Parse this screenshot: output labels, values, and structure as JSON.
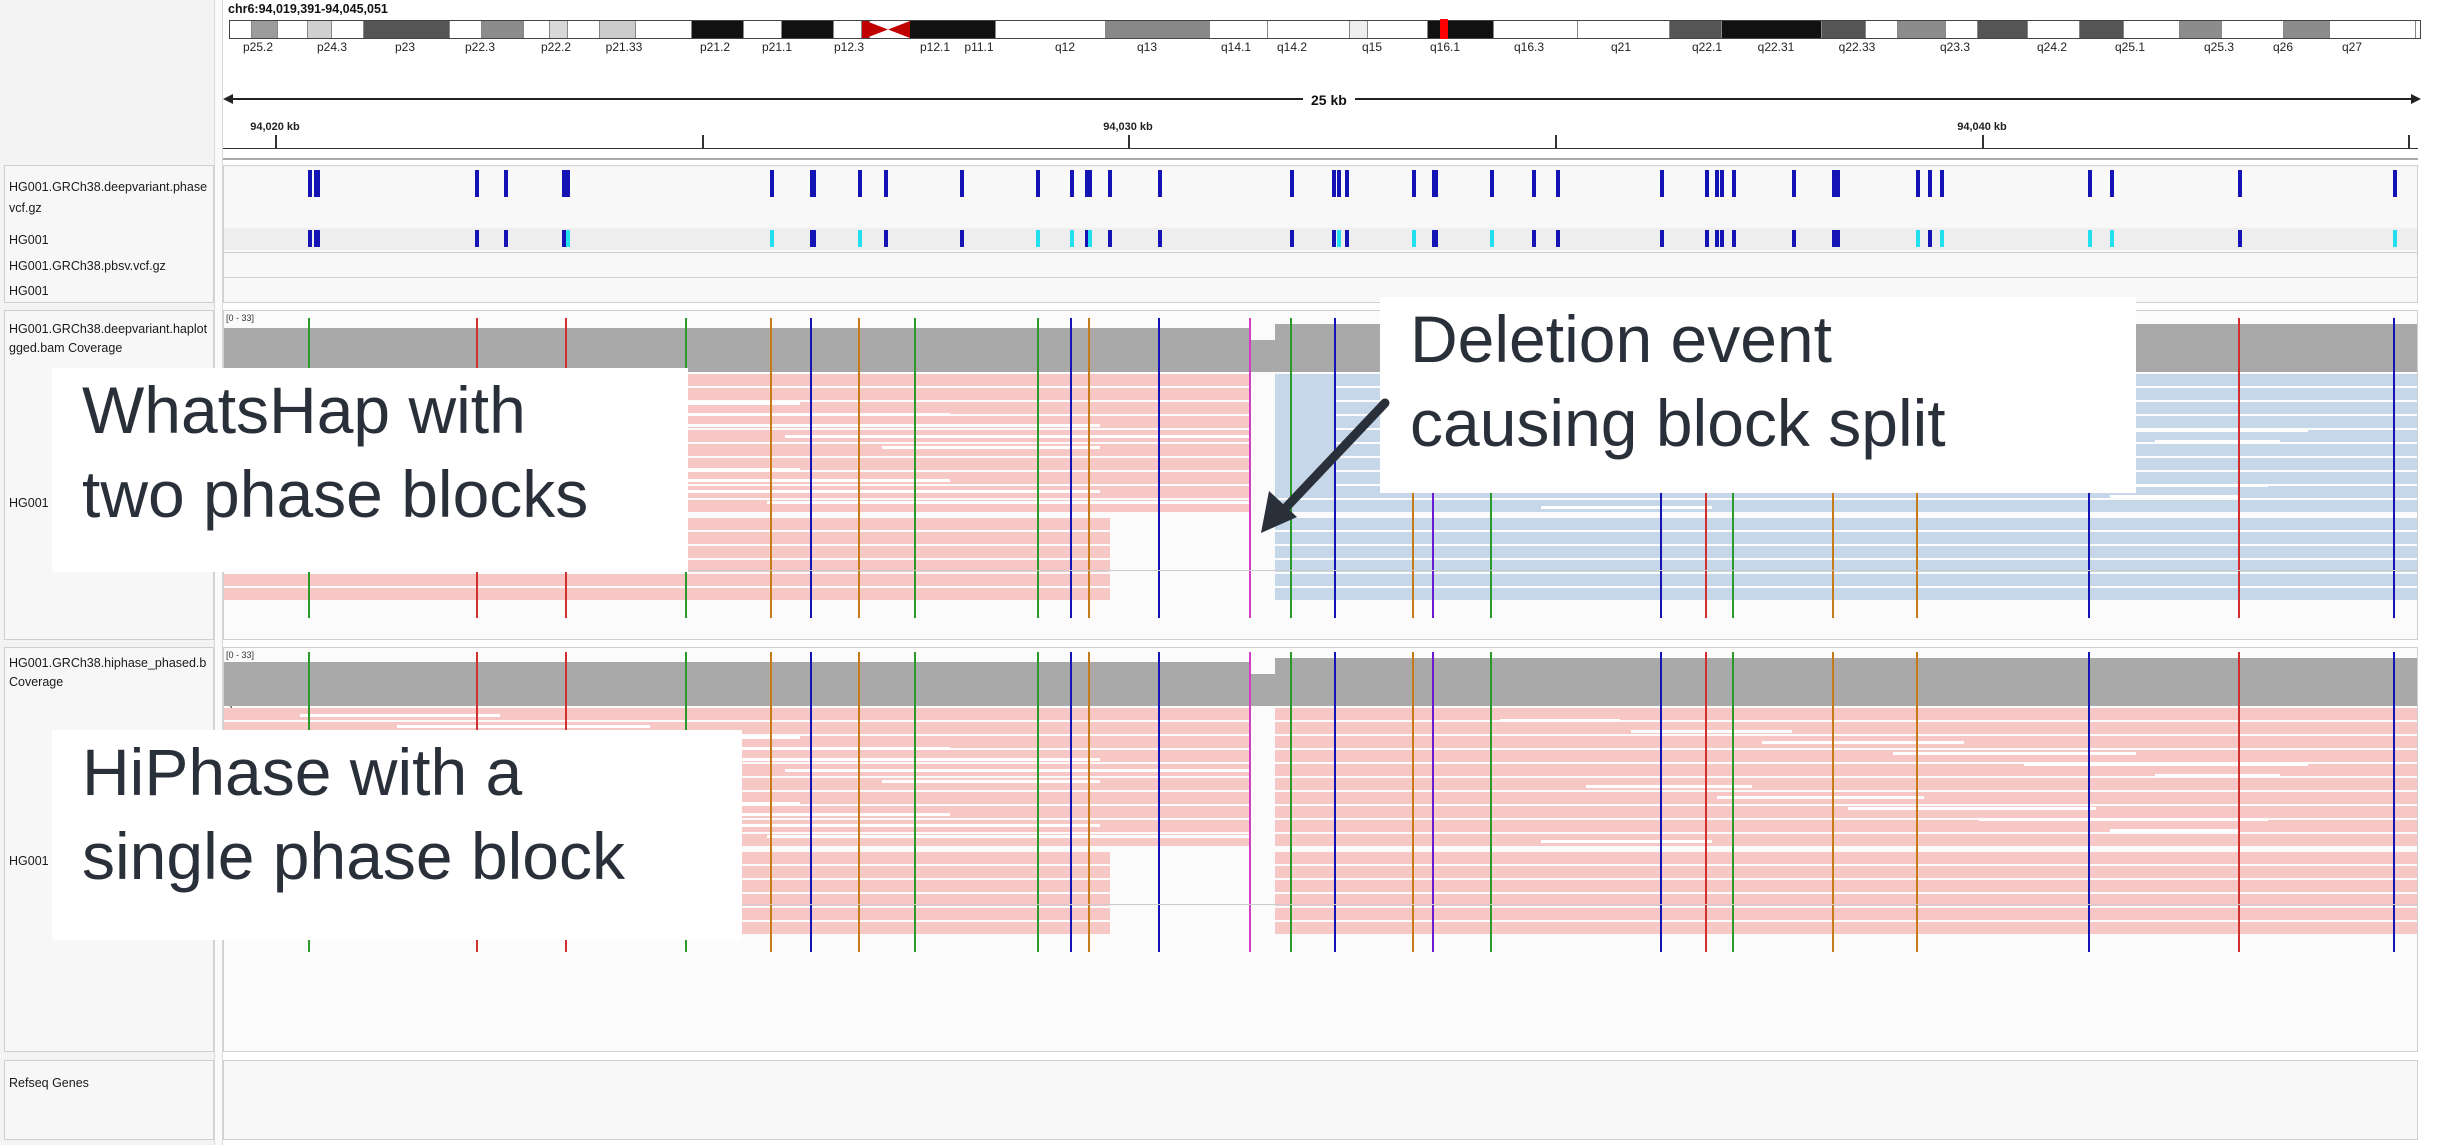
{
  "locus": "chr6:94,019,391-94,045,051",
  "span_label": "25 kb",
  "ruler_ticks": [
    {
      "label": "94,020 kb"
    },
    {
      "label": "94,030 kb"
    },
    {
      "label": "94,040 kb"
    }
  ],
  "ideogram_bands": [
    "p25.2",
    "p24.3",
    "p23",
    "p22.3",
    "p22.2",
    "p21.33",
    "p21.2",
    "p21.1",
    "p12.3",
    "p12.1",
    "p11.1",
    "q12",
    "q13",
    "q14.1",
    "q14.2",
    "q15",
    "q16.1",
    "q16.3",
    "q21",
    "q22.1",
    "q22.31",
    "q22.33",
    "q23.3",
    "q24.2",
    "q25.1",
    "q25.3",
    "q26",
    "q27"
  ],
  "tracks": {
    "vcf_name": "HG001.GRCh38.deepvariant.phased.vcf.gz",
    "vcf_name_line1": "HG001.GRCh38.deepvariant.phase",
    "vcf_name_line2": "vcf.gz",
    "vcf_sample": "HG001",
    "sv_name": "HG001.GRCh38.pbsv.vcf.gz",
    "sv_sample": "HG001",
    "bam1_cov_line1": "HG001.GRCh38.deepvariant.haplot",
    "bam1_cov_line2": "gged.bam Coverage",
    "bam1_reads": "HG001",
    "bam2_cov_line1": "HG001.GRCh38.hiphase_phased.b",
    "bam2_cov_line2": "Coverage",
    "bam2_reads": "HG001",
    "refseq": "Refseq Genes",
    "cov_range": "[0 - 33]",
    "group_counter": "1"
  },
  "annotations": {
    "whatshap_line1": "WhatsHap with",
    "whatshap_line2": "two phase blocks",
    "deletion_line1": "Deletion event",
    "deletion_line2": "causing block split",
    "hiphase_line1": "HiPhase with a",
    "hiphase_line2": "single phase block"
  },
  "colors": {
    "haplotype1": "#f6c7c4",
    "haplotype2": "#c5d7e8",
    "coverage": "#a9a9a9",
    "variant_het": "#1414b4",
    "variant_phased": "#22e0f0",
    "centromere": "#c00000",
    "annotation_text": "#2a303a"
  }
}
